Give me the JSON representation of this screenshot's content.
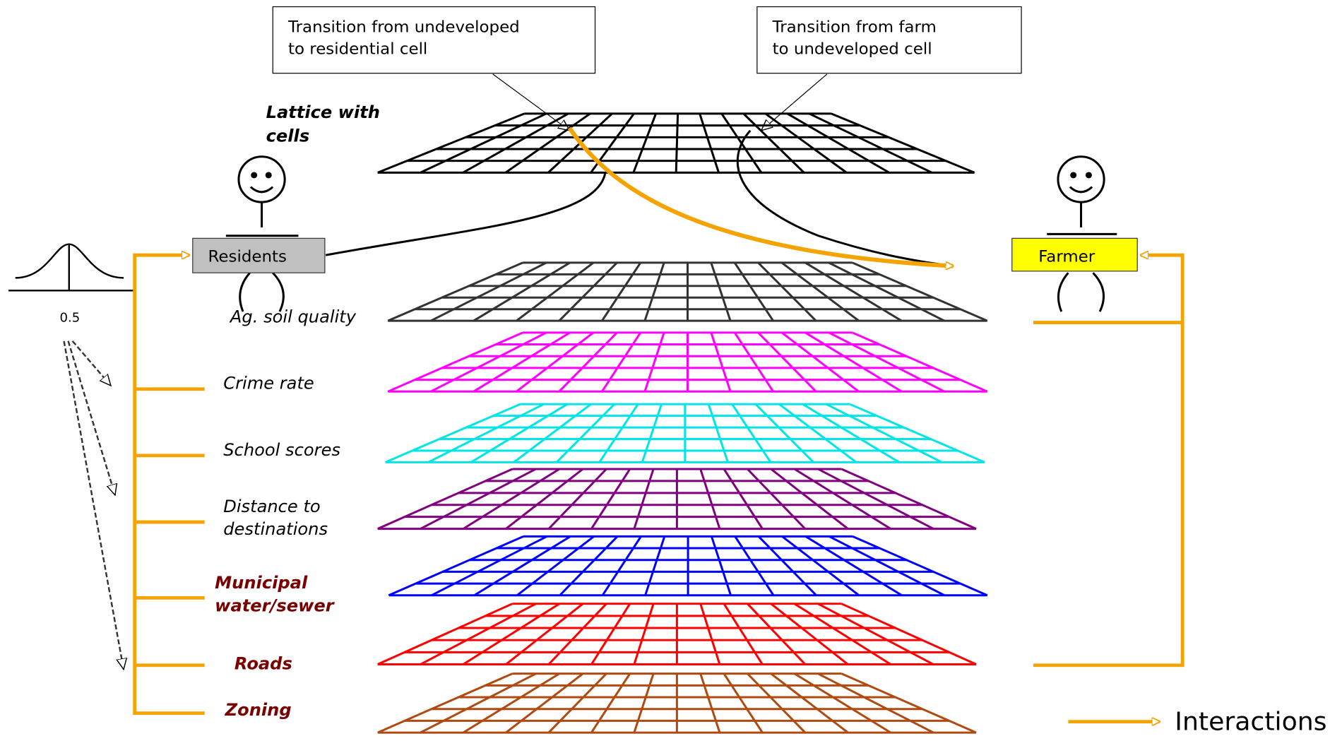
{
  "callouts": [
    [
      "Transition from undeveloped",
      "to  residential cell"
    ],
    [
      "Transition from farm",
      "to undeveloped cell"
    ]
  ],
  "lattice_label": [
    "Lattice with",
    "cells"
  ],
  "agents": {
    "residents": "Residents",
    "farmer": "Farmer"
  },
  "distribution_label": "0.5",
  "layers": [
    {
      "label": [
        "Ag. soil quality"
      ],
      "color": "#333333"
    },
    {
      "label": [
        "Crime rate"
      ],
      "color": "#ff00ff"
    },
    {
      "label": [
        "School    scores"
      ],
      "color": "#00e5e5"
    },
    {
      "label": [
        "Distance to",
        "destinations"
      ],
      "color": "#800080"
    },
    {
      "label": [
        "Municipal",
        "water/sewer"
      ],
      "color": "#0000ff"
    },
    {
      "label": [
        "Roads"
      ],
      "color": "#ff0000"
    },
    {
      "label": [
        "Zoning"
      ],
      "color": "#b04a10"
    }
  ],
  "legend": "Interactions"
}
